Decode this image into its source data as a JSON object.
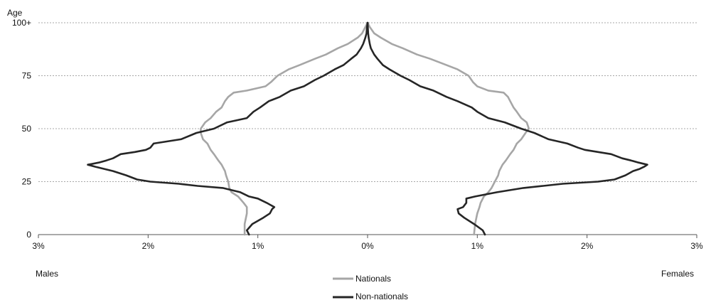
{
  "chart_data": {
    "type": "line",
    "ylabel": "Age",
    "left_label": "Males",
    "right_label": "Females",
    "xlim": [
      -3,
      3
    ],
    "ylim": [
      0,
      100
    ],
    "x_ticks": [
      {
        "value": -3,
        "label": "3%"
      },
      {
        "value": -2,
        "label": "2%"
      },
      {
        "value": -1,
        "label": "1%"
      },
      {
        "value": 0,
        "label": "0%"
      },
      {
        "value": 1,
        "label": "1%"
      },
      {
        "value": 2,
        "label": "2%"
      },
      {
        "value": 3,
        "label": "3%"
      }
    ],
    "y_ticks": [
      {
        "value": 0,
        "label": "0"
      },
      {
        "value": 25,
        "label": "25"
      },
      {
        "value": 50,
        "label": "50"
      },
      {
        "value": 75,
        "label": "75"
      },
      {
        "value": 100,
        "label": "100+"
      }
    ],
    "grid": true,
    "legend_position": "bottom-center",
    "series": [
      {
        "name": "Nationals",
        "color": "#a6a6a6",
        "ages": [
          0,
          5,
          10,
          13,
          15,
          18,
          20,
          22,
          25,
          28,
          30,
          33,
          35,
          38,
          40,
          43,
          45,
          48,
          50,
          53,
          55,
          58,
          60,
          63,
          65,
          67,
          68,
          70,
          72,
          75,
          78,
          80,
          83,
          85,
          88,
          90,
          93,
          95,
          98,
          100
        ],
        "males": [
          -1.12,
          -1.12,
          -1.1,
          -1.1,
          -1.13,
          -1.18,
          -1.24,
          -1.26,
          -1.27,
          -1.29,
          -1.3,
          -1.33,
          -1.36,
          -1.4,
          -1.43,
          -1.46,
          -1.5,
          -1.52,
          -1.52,
          -1.48,
          -1.43,
          -1.38,
          -1.33,
          -1.3,
          -1.27,
          -1.22,
          -1.1,
          -0.93,
          -0.88,
          -0.82,
          -0.72,
          -0.62,
          -0.48,
          -0.38,
          -0.27,
          -0.18,
          -0.09,
          -0.05,
          -0.02,
          0.0
        ],
        "females": [
          0.97,
          0.98,
          1.0,
          1.02,
          1.03,
          1.06,
          1.1,
          1.13,
          1.16,
          1.19,
          1.2,
          1.23,
          1.26,
          1.3,
          1.33,
          1.36,
          1.4,
          1.44,
          1.47,
          1.45,
          1.4,
          1.36,
          1.33,
          1.3,
          1.28,
          1.24,
          1.1,
          1.0,
          0.96,
          0.92,
          0.82,
          0.72,
          0.57,
          0.45,
          0.32,
          0.22,
          0.12,
          0.06,
          0.02,
          0.0
        ]
      },
      {
        "name": "Non-nationals",
        "color": "#262626",
        "ages": [
          0,
          2,
          5,
          8,
          10,
          12,
          13,
          15,
          17,
          18,
          20,
          22,
          23,
          24,
          25,
          26,
          28,
          30,
          31,
          32,
          33,
          34,
          35,
          36,
          38,
          39,
          40,
          41,
          43,
          45,
          48,
          50,
          53,
          55,
          58,
          60,
          63,
          65,
          68,
          70,
          73,
          75,
          78,
          80,
          83,
          85,
          88,
          90,
          93,
          95,
          98,
          100
        ],
        "males": [
          -1.08,
          -1.1,
          -1.05,
          -0.95,
          -0.89,
          -0.87,
          -0.85,
          -0.92,
          -1.0,
          -1.08,
          -1.16,
          -1.32,
          -1.55,
          -1.72,
          -1.98,
          -2.1,
          -2.2,
          -2.32,
          -2.4,
          -2.48,
          -2.55,
          -2.45,
          -2.38,
          -2.32,
          -2.25,
          -2.12,
          -2.02,
          -1.98,
          -1.95,
          -1.7,
          -1.56,
          -1.4,
          -1.28,
          -1.1,
          -1.04,
          -0.98,
          -0.9,
          -0.8,
          -0.7,
          -0.58,
          -0.48,
          -0.4,
          -0.3,
          -0.22,
          -0.15,
          -0.1,
          -0.06,
          -0.04,
          -0.02,
          -0.01,
          -0.005,
          0.0
        ],
        "females": [
          1.07,
          1.05,
          0.97,
          0.88,
          0.83,
          0.82,
          0.87,
          0.9,
          0.9,
          0.98,
          1.18,
          1.42,
          1.6,
          1.78,
          2.1,
          2.25,
          2.35,
          2.42,
          2.48,
          2.52,
          2.55,
          2.47,
          2.4,
          2.32,
          2.22,
          2.1,
          1.98,
          1.92,
          1.82,
          1.65,
          1.52,
          1.4,
          1.25,
          1.1,
          1.0,
          0.95,
          0.82,
          0.72,
          0.6,
          0.48,
          0.38,
          0.3,
          0.2,
          0.14,
          0.09,
          0.06,
          0.03,
          0.02,
          0.01,
          0.005,
          0.002,
          0.0
        ]
      }
    ]
  }
}
